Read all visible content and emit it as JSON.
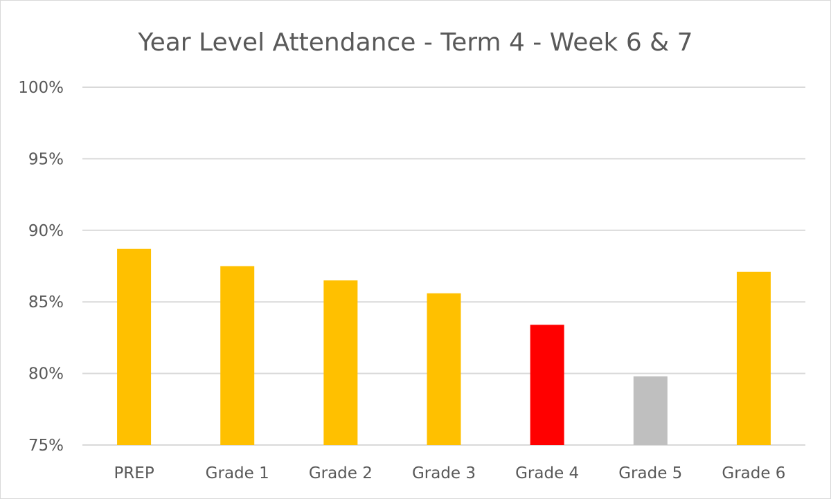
{
  "chart_data": {
    "type": "bar",
    "title": "Year Level Attendance - Term 4 - Week 6 & 7",
    "xlabel": "",
    "ylabel": "",
    "categories": [
      "PREP",
      "Grade 1",
      "Grade 2",
      "Grade 3",
      "Grade 4",
      "Grade 5",
      "Grade 6"
    ],
    "values": [
      88.7,
      87.5,
      86.5,
      85.6,
      83.4,
      79.8,
      87.1
    ],
    "bar_colors": [
      "#FFC000",
      "#FFC000",
      "#FFC000",
      "#FFC000",
      "#FF0000",
      "#BFBFBF",
      "#FFC000"
    ],
    "ylim": [
      75,
      100
    ],
    "yticks": [
      75,
      80,
      85,
      90,
      95,
      100
    ],
    "ytick_labels": [
      "75%",
      "80%",
      "85%",
      "90%",
      "95%",
      "100%"
    ],
    "grid": true,
    "legend": "none"
  }
}
